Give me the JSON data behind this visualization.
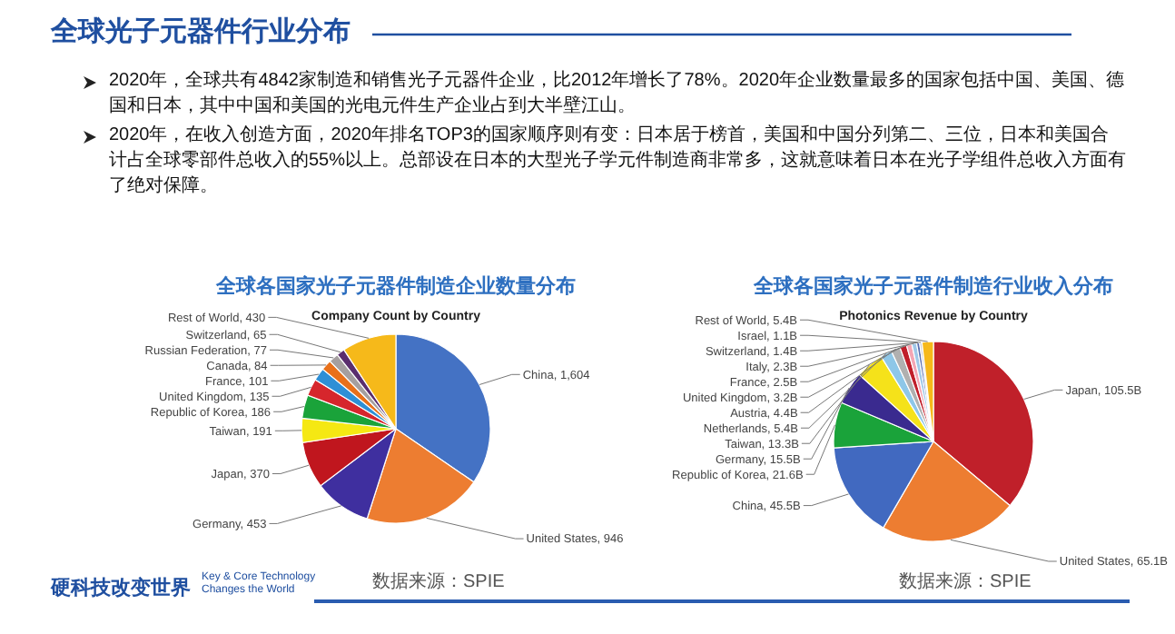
{
  "chart_data": [
    {
      "type": "other",
      "title": "全球光子元器件行业分布",
      "annotations": [
        "2020年，全球共有4842家制造和销售光子元器件企业，比2012年增长了78%。2020年企业数量最多的国家包括中国、美国、德国和日本，其中中国和美国的光电元件生产企业占到大半壁江山。",
        "2020年，在收入创造方面，2020年排名TOP3的国家顺序则有变：日本居于榜首，美国和中国分列第二、三位，日本和美国合计占全球零部件总收入的55%以上。总部设在日本的大型光子学元件制造商非常多，这就意味着日本在光子学组件总收入方面有了绝对保障。",
        "硬科技改变世界",
        "Key & Core Technology",
        "Changes the World"
      ]
    },
    {
      "type": "pie",
      "title": "全球各国家光子元器件制造企业数量分布",
      "subtitle": "Company Count by Country",
      "annotations": [
        "数据来源：SPIE"
      ],
      "categories": [
        "China",
        "United States",
        "Germany",
        "Japan",
        "Taiwan",
        "Republic of Korea",
        "United Kingdom",
        "France",
        "Canada",
        "Russian Federation",
        "Switzerland",
        "Rest of World"
      ],
      "values": [
        1604,
        946,
        453,
        370,
        191,
        186,
        135,
        101,
        84,
        77,
        65,
        430
      ],
      "value_labels": [
        "1,604",
        "946",
        "453",
        "370",
        "191",
        "186",
        "135",
        "101",
        "84",
        "77",
        "65",
        "430"
      ],
      "colors": [
        "#4472c4",
        "#ed7d31",
        "#3f2f9f",
        "#c0161e",
        "#f5e813",
        "#1aa33a",
        "#d6262c",
        "#2e8fd6",
        "#e8701a",
        "#a59fa0",
        "#5a2d6e",
        "#f6b91a"
      ]
    },
    {
      "type": "pie",
      "title": "全球各国家光子元器件制造行业收入分布",
      "subtitle": "Photonics Revenue by Country",
      "annotations": [
        "数据来源：SPIE"
      ],
      "categories": [
        "Japan",
        "United States",
        "China",
        "Republic of Korea",
        "Germany",
        "Taiwan",
        "Netherlands",
        "Austria",
        "United Kingdom",
        "France",
        "Italy",
        "Switzerland",
        "Israel",
        "Rest of World"
      ],
      "values": [
        105.5,
        65.1,
        45.5,
        21.6,
        15.5,
        13.3,
        5.4,
        4.4,
        3.2,
        2.5,
        2.3,
        1.4,
        1.1,
        5.4
      ],
      "value_labels": [
        "105.5B",
        "65.1B",
        "45.5B",
        "21.6B",
        "15.5B",
        "13.3B",
        "5.4B",
        "4.4B",
        "3.2B",
        "2.5B",
        "2.3B",
        "1.4B",
        "1.1B",
        "5.4B"
      ],
      "colors": [
        "#c0202a",
        "#ed7d31",
        "#4169c0",
        "#1aa33a",
        "#3a2a8f",
        "#f5e21a",
        "#8ec7e8",
        "#b0b0b0",
        "#c01e2a",
        "#f4a6b4",
        "#a0c8e8",
        "#5a6fb0",
        "#d0d0d0",
        "#f6b91a"
      ]
    }
  ]
}
